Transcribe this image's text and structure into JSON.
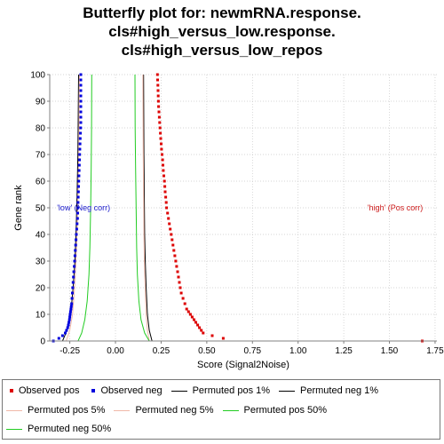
{
  "chart_data": {
    "type": "line",
    "title_lines": [
      "Butterfly plot for: newmRNA.response.",
      "cls#high_versus_low.response.",
      "cls#high_versus_low_repos"
    ],
    "xlabel": "Score (Signal2Noise)",
    "ylabel": "Gene rank",
    "xlim": [
      -0.36,
      1.76
    ],
    "ylim": [
      0,
      100
    ],
    "x_ticks": [
      -0.25,
      0.0,
      0.25,
      0.5,
      0.75,
      1.0,
      1.25,
      1.5,
      1.75
    ],
    "x_tick_labels": [
      "-0.25",
      "0.00",
      "0.25",
      "0.50",
      "0.75",
      "1.00",
      "1.25",
      "1.50",
      "1.75"
    ],
    "y_ticks": [
      0,
      10,
      20,
      30,
      40,
      50,
      60,
      70,
      80,
      90,
      100
    ],
    "y_tick_labels": [
      "0",
      "10",
      "20",
      "30",
      "40",
      "50",
      "60",
      "70",
      "80",
      "90",
      "100"
    ],
    "grid": true,
    "legend_position": "bottom",
    "annotations": [
      {
        "text": "'low' (Neg corr)",
        "x": -0.32,
        "y": 50,
        "color": "#1a1acc"
      },
      {
        "text": "'high' (Pos corr)",
        "x": 1.38,
        "y": 50,
        "color": "#cc1a1a"
      }
    ],
    "series": [
      {
        "name": "Observed pos",
        "style": "points",
        "color": "#dd0000",
        "points": [
          [
            1.68,
            0
          ],
          [
            0.59,
            1
          ],
          [
            0.53,
            2
          ],
          [
            0.48,
            3
          ],
          [
            0.47,
            4
          ],
          [
            0.46,
            5
          ],
          [
            0.45,
            6
          ],
          [
            0.44,
            7
          ],
          [
            0.43,
            8
          ],
          [
            0.42,
            9
          ],
          [
            0.41,
            10
          ],
          [
            0.4,
            11
          ],
          [
            0.39,
            12
          ],
          [
            0.38,
            14
          ],
          [
            0.37,
            16
          ],
          [
            0.36,
            18
          ],
          [
            0.355,
            20
          ],
          [
            0.35,
            22
          ],
          [
            0.345,
            24
          ],
          [
            0.34,
            26
          ],
          [
            0.335,
            28
          ],
          [
            0.33,
            30
          ],
          [
            0.325,
            32
          ],
          [
            0.32,
            34
          ],
          [
            0.315,
            36
          ],
          [
            0.31,
            38
          ],
          [
            0.305,
            40
          ],
          [
            0.3,
            42
          ],
          [
            0.295,
            44
          ],
          [
            0.29,
            46
          ],
          [
            0.285,
            48
          ],
          [
            0.28,
            50
          ],
          [
            0.278,
            52
          ],
          [
            0.275,
            54
          ],
          [
            0.272,
            56
          ],
          [
            0.27,
            58
          ],
          [
            0.268,
            60
          ],
          [
            0.265,
            62
          ],
          [
            0.262,
            64
          ],
          [
            0.26,
            66
          ],
          [
            0.258,
            68
          ],
          [
            0.255,
            70
          ],
          [
            0.252,
            72
          ],
          [
            0.25,
            74
          ],
          [
            0.248,
            76
          ],
          [
            0.246,
            78
          ],
          [
            0.244,
            80
          ],
          [
            0.242,
            82
          ],
          [
            0.24,
            84
          ],
          [
            0.238,
            86
          ],
          [
            0.236,
            88
          ],
          [
            0.235,
            90
          ],
          [
            0.234,
            92
          ],
          [
            0.233,
            94
          ],
          [
            0.232,
            96
          ],
          [
            0.231,
            98
          ],
          [
            0.23,
            100
          ]
        ]
      },
      {
        "name": "Observed neg",
        "style": "points",
        "color": "#0000dd",
        "points": [
          [
            -0.34,
            0
          ],
          [
            -0.31,
            1
          ],
          [
            -0.29,
            2
          ],
          [
            -0.275,
            3
          ],
          [
            -0.268,
            4
          ],
          [
            -0.262,
            5
          ],
          [
            -0.258,
            6
          ],
          [
            -0.255,
            7
          ],
          [
            -0.252,
            8
          ],
          [
            -0.25,
            9
          ],
          [
            -0.248,
            10
          ],
          [
            -0.246,
            11
          ],
          [
            -0.244,
            12
          ],
          [
            -0.242,
            13
          ],
          [
            -0.24,
            14
          ],
          [
            -0.238,
            16
          ],
          [
            -0.236,
            18
          ],
          [
            -0.234,
            20
          ],
          [
            -0.232,
            22
          ],
          [
            -0.23,
            24
          ],
          [
            -0.228,
            26
          ],
          [
            -0.226,
            28
          ],
          [
            -0.224,
            30
          ],
          [
            -0.222,
            32
          ],
          [
            -0.22,
            34
          ],
          [
            -0.218,
            36
          ],
          [
            -0.216,
            38
          ],
          [
            -0.214,
            40
          ],
          [
            -0.212,
            42
          ],
          [
            -0.21,
            44
          ],
          [
            -0.208,
            46
          ],
          [
            -0.207,
            48
          ],
          [
            -0.206,
            50
          ],
          [
            -0.205,
            52
          ],
          [
            -0.204,
            54
          ],
          [
            -0.203,
            56
          ],
          [
            -0.202,
            58
          ],
          [
            -0.201,
            60
          ],
          [
            -0.2,
            62
          ],
          [
            -0.199,
            64
          ],
          [
            -0.198,
            66
          ],
          [
            -0.197,
            68
          ],
          [
            -0.196,
            70
          ],
          [
            -0.195,
            72
          ],
          [
            -0.194,
            74
          ],
          [
            -0.193,
            76
          ],
          [
            -0.192,
            78
          ],
          [
            -0.191,
            80
          ],
          [
            -0.19,
            82
          ],
          [
            -0.19,
            84
          ],
          [
            -0.19,
            86
          ],
          [
            -0.19,
            88
          ],
          [
            -0.19,
            90
          ],
          [
            -0.19,
            92
          ],
          [
            -0.19,
            94
          ],
          [
            -0.19,
            96
          ],
          [
            -0.19,
            98
          ],
          [
            -0.19,
            100
          ]
        ]
      },
      {
        "name": "Permuted pos 1%",
        "style": "line",
        "color": "#000000",
        "points": [
          [
            0.2,
            0
          ],
          [
            0.185,
            4
          ],
          [
            0.175,
            10
          ],
          [
            0.168,
            20
          ],
          [
            0.163,
            30
          ],
          [
            0.16,
            40
          ],
          [
            0.158,
            55
          ],
          [
            0.156,
            70
          ],
          [
            0.155,
            85
          ],
          [
            0.154,
            100
          ]
        ]
      },
      {
        "name": "Permuted neg 1%",
        "style": "line",
        "color": "#000000",
        "points": [
          [
            -0.29,
            0
          ],
          [
            -0.265,
            4
          ],
          [
            -0.245,
            10
          ],
          [
            -0.232,
            20
          ],
          [
            -0.222,
            30
          ],
          [
            -0.216,
            40
          ],
          [
            -0.21,
            55
          ],
          [
            -0.206,
            70
          ],
          [
            -0.204,
            85
          ],
          [
            -0.202,
            100
          ]
        ]
      },
      {
        "name": "Permuted pos 5%",
        "style": "line",
        "color": "#f0b8a8",
        "points": [
          [
            0.185,
            0
          ],
          [
            0.175,
            4
          ],
          [
            0.168,
            10
          ],
          [
            0.162,
            20
          ],
          [
            0.158,
            30
          ],
          [
            0.156,
            40
          ],
          [
            0.154,
            55
          ],
          [
            0.152,
            70
          ],
          [
            0.151,
            85
          ],
          [
            0.15,
            100
          ]
        ]
      },
      {
        "name": "Permuted neg 5%",
        "style": "line",
        "color": "#f0b8a8",
        "points": [
          [
            -0.27,
            0
          ],
          [
            -0.25,
            4
          ],
          [
            -0.235,
            10
          ],
          [
            -0.224,
            20
          ],
          [
            -0.216,
            30
          ],
          [
            -0.21,
            40
          ],
          [
            -0.205,
            55
          ],
          [
            -0.201,
            70
          ],
          [
            -0.199,
            85
          ],
          [
            -0.197,
            100
          ]
        ]
      },
      {
        "name": "Permuted pos 50%",
        "style": "line",
        "color": "#22cc22",
        "points": [
          [
            0.185,
            0
          ],
          [
            0.16,
            3
          ],
          [
            0.14,
            8
          ],
          [
            0.128,
            15
          ],
          [
            0.12,
            25
          ],
          [
            0.116,
            35
          ],
          [
            0.113,
            50
          ],
          [
            0.11,
            65
          ],
          [
            0.108,
            80
          ],
          [
            0.107,
            100
          ]
        ]
      },
      {
        "name": "Permuted neg 50%",
        "style": "line",
        "color": "#22cc22",
        "points": [
          [
            -0.205,
            0
          ],
          [
            -0.185,
            3
          ],
          [
            -0.168,
            8
          ],
          [
            -0.155,
            15
          ],
          [
            -0.145,
            25
          ],
          [
            -0.14,
            35
          ],
          [
            -0.136,
            50
          ],
          [
            -0.133,
            65
          ],
          [
            -0.131,
            80
          ],
          [
            -0.13,
            100
          ]
        ]
      }
    ]
  }
}
